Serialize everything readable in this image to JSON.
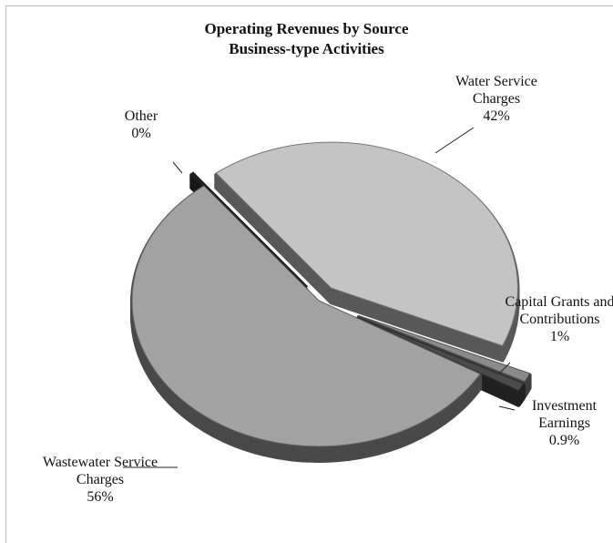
{
  "chart_data": {
    "type": "pie",
    "title": "Operating Revenues by Source",
    "subtitle": "Business-type Activities",
    "categories": [
      "Other",
      "Water Service Charges",
      "Capital Grants and Contributions",
      "Investment Earnings",
      "Wastewater Service Charges"
    ],
    "values": [
      0,
      42,
      1,
      0.9,
      56
    ],
    "value_labels": [
      "0%",
      "42%",
      "1%",
      "0.9%",
      "56%"
    ],
    "colors": [
      "#333333",
      "#c4c4c4",
      "#8a8a8a",
      "#4a4a4a",
      "#a2a2a2"
    ]
  }
}
